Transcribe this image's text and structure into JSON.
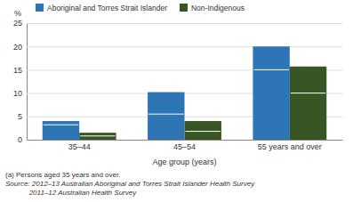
{
  "chart_data": {
    "type": "bar",
    "categories": [
      "35–44",
      "45–54",
      "55 years and over"
    ],
    "series": [
      {
        "name": "Aboriginal and Torres Strait Islander",
        "color": "#2e75b6",
        "values": [
          4.0,
          10.2,
          20.0
        ],
        "ci": [
          3.2,
          5.5,
          15.0
        ]
      },
      {
        "name": "Non-Indigenous",
        "color": "#375623",
        "values": [
          1.5,
          4.0,
          15.7
        ],
        "ci": [
          0.8,
          1.8,
          10.0
        ]
      }
    ],
    "ylabel": "%",
    "xlabel": "Age group (years)",
    "ylim": [
      0,
      25
    ],
    "yticks": [
      0,
      5,
      10,
      15,
      20,
      25
    ],
    "grid": true,
    "legend": "top",
    "annotations": [
      "(a) Persons aged 35 years and over.",
      "Source: 2012–13 Australian Aboriginal and Torres Strait Islander Health Survey",
      "            2011–12 Australian Health Survey"
    ]
  }
}
